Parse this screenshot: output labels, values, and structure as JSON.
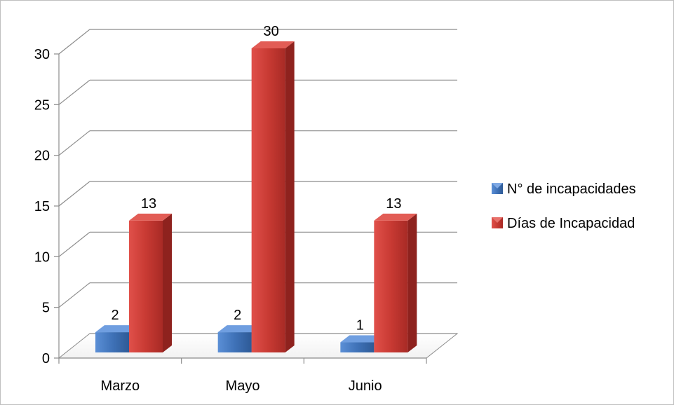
{
  "chart_data": {
    "type": "bar",
    "categories": [
      "Marzo",
      "Mayo",
      "Junio"
    ],
    "series": [
      {
        "name": "N° de incapacidades",
        "values": [
          2,
          2,
          1
        ],
        "color": "#4a7ebb"
      },
      {
        "name": "Días de Incapacidad",
        "values": [
          13,
          30,
          13
        ],
        "color": "#c0392b"
      }
    ],
    "ylim": [
      0,
      30
    ],
    "yticks": [
      0,
      5,
      10,
      15,
      20,
      25,
      30
    ],
    "grid": true,
    "legend_position": "right",
    "data_labels": true,
    "style": "3d-clustered-columns"
  }
}
